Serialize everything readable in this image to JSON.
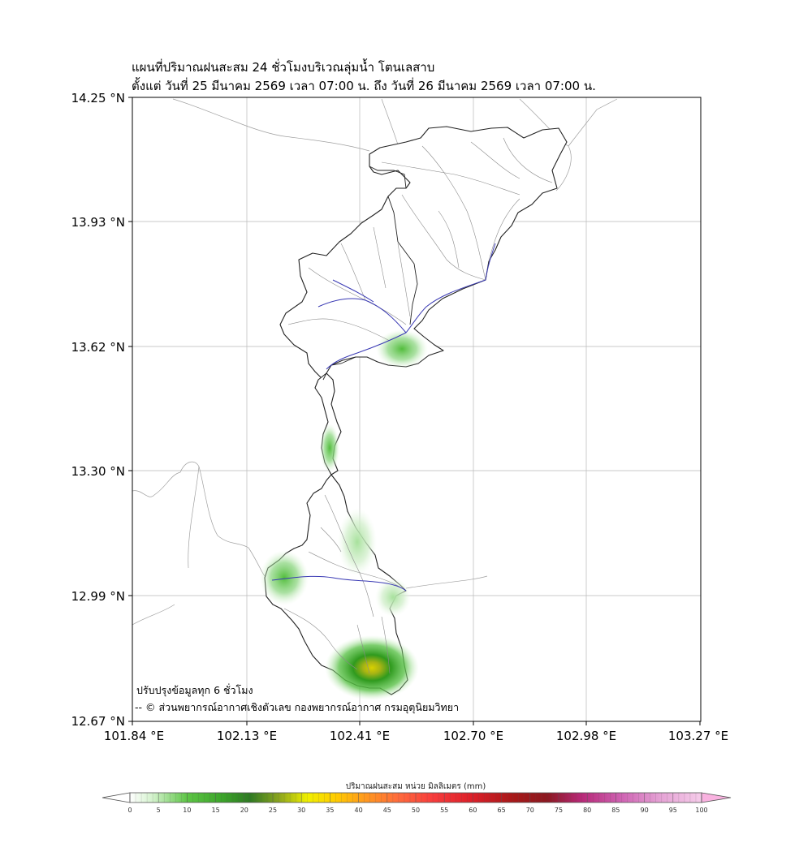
{
  "title_line1": "แผนที่ปริมาณฝนสะสม 24 ชั่วโมงบริเวณลุ่มน้ำ โตนเลสาบ",
  "title_line2": "ตั้งแต่ วันที่ 25 มีนาคม 2569 เวลา 07:00 น. ถึง วันที่ 26 มีนาคม 2569 เวลา 07:00 น.",
  "note_update": "ปรับปรุงข้อมูลทุก 6 ชั่วโมง",
  "note_credit": "-- © ส่วนพยากรณ์อากาศเชิงตัวเลข กองพยากรณ์อากาศ กรมอุตุนิยมวิทยา",
  "map_data": {
    "lat_ticks": [
      "14.25 °N",
      "13.93 °N",
      "13.62 °N",
      "13.30 °N",
      "12.99 °N",
      "12.67 °N"
    ],
    "lon_ticks": [
      "101.84 °E",
      "102.13 °E",
      "102.41 °E",
      "102.70 °E",
      "102.98 °E",
      "103.27 °E"
    ],
    "lat_range": [
      12.67,
      14.25
    ],
    "lon_range": [
      101.84,
      103.27
    ],
    "grid": true
  },
  "colorbar": {
    "title": "ปริมาณฝนสะสม หน่วย มิลลิเมตร (mm)",
    "labels": [
      "0",
      "5",
      "10",
      "15",
      "20",
      "25",
      "30",
      "35",
      "40",
      "45",
      "50",
      "55",
      "60",
      "65",
      "70",
      "75",
      "80",
      "85",
      "90",
      "95",
      "100"
    ],
    "min": 0,
    "max": 100
  }
}
